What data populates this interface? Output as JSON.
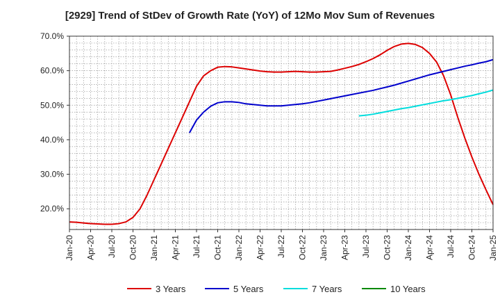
{
  "chart_data": {
    "type": "line",
    "title": "[2929]  Trend of StDev of Growth Rate (YoY) of 12Mo Mov Sum of Revenues",
    "xlabel": "",
    "ylabel": "",
    "ylim": [
      14,
      70
    ],
    "yticks": [
      20,
      30,
      40,
      50,
      60,
      70
    ],
    "ytick_labels": [
      "20.0%",
      "30.0%",
      "40.0%",
      "50.0%",
      "60.0%",
      "70.0%"
    ],
    "xlim": [
      0,
      60
    ],
    "x_tick_positions": [
      0,
      3,
      6,
      9,
      12,
      15,
      18,
      21,
      24,
      27,
      30,
      33,
      36,
      39,
      42,
      45,
      48,
      51,
      54,
      57,
      60
    ],
    "x_tick_labels": [
      "Jan-20",
      "Apr-20",
      "Jul-20",
      "Oct-20",
      "Jan-21",
      "Apr-21",
      "Jul-21",
      "Oct-21",
      "Jan-22",
      "Apr-22",
      "Jul-22",
      "Oct-22",
      "Jan-23",
      "Apr-23",
      "Jul-23",
      "Oct-23",
      "Jan-24",
      "Apr-24",
      "Jul-24",
      "Oct-24",
      "Jan-25"
    ],
    "grid": true,
    "legend_position": "bottom",
    "series": [
      {
        "name": "3 Years",
        "color": "#dd0000",
        "points": [
          [
            0,
            16.2
          ],
          [
            1,
            16.1
          ],
          [
            2,
            15.9
          ],
          [
            3,
            15.7
          ],
          [
            4,
            15.6
          ],
          [
            5,
            15.5
          ],
          [
            6,
            15.5
          ],
          [
            7,
            15.7
          ],
          [
            8,
            16.2
          ],
          [
            9,
            17.5
          ],
          [
            10,
            20
          ],
          [
            11,
            24
          ],
          [
            12,
            28.5
          ],
          [
            13,
            33
          ],
          [
            14,
            37.5
          ],
          [
            15,
            42
          ],
          [
            16,
            46.5
          ],
          [
            17,
            51
          ],
          [
            18,
            55.5
          ],
          [
            19,
            58.5
          ],
          [
            20,
            60
          ],
          [
            21,
            61
          ],
          [
            22,
            61.2
          ],
          [
            23,
            61.1
          ],
          [
            24,
            60.8
          ],
          [
            25,
            60.5
          ],
          [
            26,
            60.2
          ],
          [
            27,
            59.9
          ],
          [
            28,
            59.7
          ],
          [
            29,
            59.6
          ],
          [
            30,
            59.6
          ],
          [
            31,
            59.7
          ],
          [
            32,
            59.8
          ],
          [
            33,
            59.7
          ],
          [
            34,
            59.6
          ],
          [
            35,
            59.6
          ],
          [
            36,
            59.7
          ],
          [
            37,
            59.8
          ],
          [
            38,
            60.2
          ],
          [
            39,
            60.7
          ],
          [
            40,
            61.2
          ],
          [
            41,
            61.8
          ],
          [
            42,
            62.6
          ],
          [
            43,
            63.5
          ],
          [
            44,
            64.6
          ],
          [
            45,
            65.9
          ],
          [
            46,
            67
          ],
          [
            47,
            67.7
          ],
          [
            48,
            67.9
          ],
          [
            49,
            67.6
          ],
          [
            50,
            66.7
          ],
          [
            51,
            65
          ],
          [
            52,
            62.5
          ],
          [
            53,
            58.5
          ],
          [
            54,
            53
          ],
          [
            55,
            46.5
          ],
          [
            56,
            40.5
          ],
          [
            57,
            35
          ],
          [
            58,
            30
          ],
          [
            59,
            25.5
          ],
          [
            60,
            21.2
          ]
        ]
      },
      {
        "name": "5 Years",
        "color": "#0000cc",
        "points": [
          [
            17,
            42
          ],
          [
            18,
            45.7
          ],
          [
            19,
            48
          ],
          [
            20,
            49.7
          ],
          [
            21,
            50.7
          ],
          [
            22,
            51
          ],
          [
            23,
            51
          ],
          [
            24,
            50.8
          ],
          [
            25,
            50.4
          ],
          [
            26,
            50.2
          ],
          [
            27,
            50
          ],
          [
            28,
            49.8
          ],
          [
            29,
            49.8
          ],
          [
            30,
            49.8
          ],
          [
            31,
            50
          ],
          [
            32,
            50.2
          ],
          [
            33,
            50.4
          ],
          [
            34,
            50.7
          ],
          [
            35,
            51.1
          ],
          [
            36,
            51.5
          ],
          [
            37,
            51.9
          ],
          [
            38,
            52.3
          ],
          [
            39,
            52.7
          ],
          [
            40,
            53.1
          ],
          [
            41,
            53.5
          ],
          [
            42,
            53.9
          ],
          [
            43,
            54.3
          ],
          [
            44,
            54.8
          ],
          [
            45,
            55.3
          ],
          [
            46,
            55.8
          ],
          [
            47,
            56.4
          ],
          [
            48,
            57
          ],
          [
            49,
            57.6
          ],
          [
            50,
            58.2
          ],
          [
            51,
            58.8
          ],
          [
            52,
            59.3
          ],
          [
            53,
            59.8
          ],
          [
            54,
            60.3
          ],
          [
            55,
            60.8
          ],
          [
            56,
            61.3
          ],
          [
            57,
            61.7
          ],
          [
            58,
            62.2
          ],
          [
            59,
            62.6
          ],
          [
            60,
            63.2
          ]
        ]
      },
      {
        "name": "7 Years",
        "color": "#00dddd",
        "points": [
          [
            41,
            46.9
          ],
          [
            42,
            47.1
          ],
          [
            43,
            47.4
          ],
          [
            44,
            47.8
          ],
          [
            45,
            48.2
          ],
          [
            46,
            48.6
          ],
          [
            47,
            49
          ],
          [
            48,
            49.3
          ],
          [
            49,
            49.7
          ],
          [
            50,
            50.1
          ],
          [
            51,
            50.5
          ],
          [
            52,
            50.9
          ],
          [
            53,
            51.3
          ],
          [
            54,
            51.6
          ],
          [
            55,
            52
          ],
          [
            56,
            52.4
          ],
          [
            57,
            52.8
          ],
          [
            58,
            53.3
          ],
          [
            59,
            53.8
          ],
          [
            60,
            54.4
          ]
        ]
      },
      {
        "name": "10 Years",
        "color": "#008800",
        "points": []
      }
    ]
  }
}
